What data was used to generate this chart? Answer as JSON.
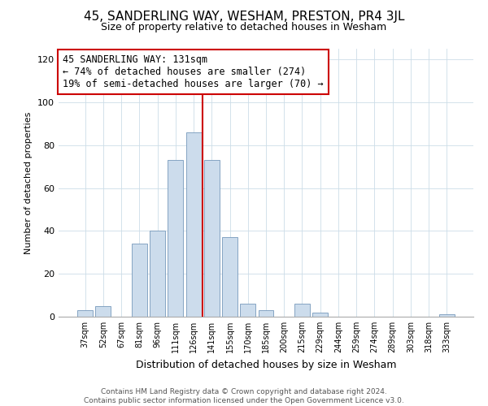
{
  "title": "45, SANDERLING WAY, WESHAM, PRESTON, PR4 3JL",
  "subtitle": "Size of property relative to detached houses in Wesham",
  "xlabel": "Distribution of detached houses by size in Wesham",
  "ylabel": "Number of detached properties",
  "footer_line1": "Contains HM Land Registry data © Crown copyright and database right 2024.",
  "footer_line2": "Contains public sector information licensed under the Open Government Licence v3.0.",
  "categories": [
    "37sqm",
    "52sqm",
    "67sqm",
    "81sqm",
    "96sqm",
    "111sqm",
    "126sqm",
    "141sqm",
    "155sqm",
    "170sqm",
    "185sqm",
    "200sqm",
    "215sqm",
    "229sqm",
    "244sqm",
    "259sqm",
    "274sqm",
    "289sqm",
    "303sqm",
    "318sqm",
    "333sqm"
  ],
  "values": [
    3,
    5,
    0,
    34,
    40,
    73,
    86,
    73,
    37,
    6,
    3,
    0,
    6,
    2,
    0,
    0,
    0,
    0,
    0,
    0,
    1
  ],
  "bar_color": "#ccdcec",
  "bar_edge_color": "#7799bb",
  "highlight_bar_index": 6,
  "highlight_line_color": "#cc0000",
  "annotation_title": "45 SANDERLING WAY: 131sqm",
  "annotation_line1": "← 74% of detached houses are smaller (274)",
  "annotation_line2": "19% of semi-detached houses are larger (70) →",
  "annotation_box_edge_color": "#cc0000",
  "annotation_box_bg": "#ffffff",
  "ylim": [
    0,
    125
  ],
  "yticks": [
    0,
    20,
    40,
    60,
    80,
    100,
    120
  ],
  "title_fontsize": 11,
  "subtitle_fontsize": 9,
  "ylabel_fontsize": 8,
  "xlabel_fontsize": 9,
  "footer_fontsize": 6.5,
  "tick_fontsize": 8,
  "xtick_fontsize": 7
}
